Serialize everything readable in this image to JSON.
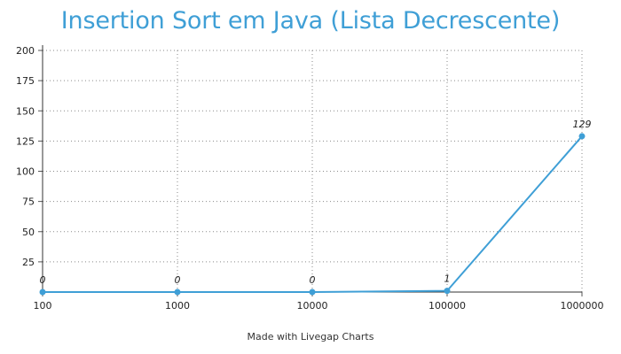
{
  "chart_data": {
    "type": "line",
    "title": "Insertion Sort em Java (Lista Decrescente)",
    "xlabel": "",
    "ylabel": "",
    "categories": [
      "100",
      "1000",
      "10000",
      "100000",
      "1000000"
    ],
    "series": [
      {
        "values": [
          0,
          0,
          0,
          1,
          129
        ],
        "labels": [
          "0",
          "0",
          "0",
          "1",
          "129"
        ]
      }
    ],
    "ylim": [
      0,
      200
    ],
    "yticks": [
      "25",
      "50",
      "75",
      "100",
      "125",
      "150",
      "175",
      "200"
    ],
    "grid": true,
    "line_color": "#3f9fd6"
  },
  "footer": {
    "credit": "Made with Livegap Charts"
  }
}
